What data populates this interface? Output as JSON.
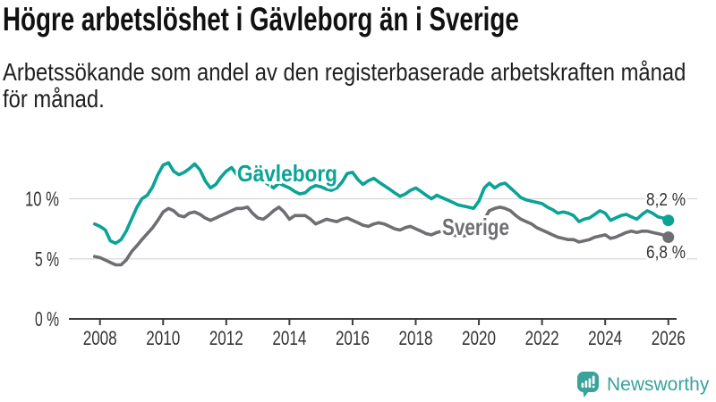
{
  "header": {
    "title": "Högre arbetslöshet i Gävleborg än i Sverige",
    "subtitle_lines": [
      "Arbetssökande som andel av den registerbaserade arbetskraften månad",
      "för månad."
    ]
  },
  "footer": {
    "brand": "Newsworthy",
    "brand_color": "#3aa29b",
    "logo_icon": "newsworthy-speech-bubble-bar-chart-icon"
  },
  "colors": {
    "gridline": "#d8d8d8",
    "axis": "#3d3d3d",
    "axis_label": "#333333",
    "end_label": "#333333"
  },
  "chart_data": {
    "type": "line",
    "x_unit": "year, monthly resolution",
    "grid": "horizontal",
    "legend": "inline-series-labels",
    "xlim": [
      2007.8,
      2026.9
    ],
    "ylim": [
      0,
      14.5
    ],
    "x": [
      2007.83,
      2008.0,
      2008.17,
      2008.33,
      2008.5,
      2008.67,
      2008.83,
      2009.0,
      2009.17,
      2009.33,
      2009.5,
      2009.67,
      2009.83,
      2010.0,
      2010.17,
      2010.33,
      2010.5,
      2010.67,
      2010.83,
      2011.0,
      2011.17,
      2011.33,
      2011.5,
      2011.67,
      2011.83,
      2012.0,
      2012.17,
      2012.33,
      2012.5,
      2012.67,
      2012.83,
      2013.0,
      2013.17,
      2013.33,
      2013.5,
      2013.67,
      2013.83,
      2014.0,
      2014.17,
      2014.33,
      2014.5,
      2014.67,
      2014.83,
      2015.0,
      2015.17,
      2015.33,
      2015.5,
      2015.67,
      2015.83,
      2016.0,
      2016.17,
      2016.33,
      2016.5,
      2016.67,
      2016.83,
      2017.0,
      2017.17,
      2017.33,
      2017.5,
      2017.67,
      2017.83,
      2018.0,
      2018.17,
      2018.33,
      2018.5,
      2018.67,
      2018.83,
      2019.0,
      2019.17,
      2019.33,
      2019.5,
      2019.67,
      2019.83,
      2020.0,
      2020.17,
      2020.33,
      2020.5,
      2020.67,
      2020.83,
      2021.0,
      2021.17,
      2021.33,
      2021.5,
      2021.67,
      2021.83,
      2022.0,
      2022.17,
      2022.33,
      2022.5,
      2022.67,
      2022.83,
      2023.0,
      2023.17,
      2023.33,
      2023.5,
      2023.67,
      2023.83,
      2024.0,
      2024.17,
      2024.33,
      2024.5,
      2024.67,
      2024.83,
      2025.0,
      2025.17,
      2025.33,
      2025.5,
      2025.67,
      2025.83,
      2026.0
    ],
    "series": [
      {
        "id": "gavleborg",
        "name": "Gävleborg",
        "color": "#0aa396",
        "end_label": "8,2 %",
        "end_value": 8.2,
        "values": [
          7.9,
          7.7,
          7.4,
          6.5,
          6.3,
          6.6,
          7.3,
          8.3,
          9.3,
          10.0,
          10.3,
          11.0,
          12.0,
          12.8,
          13.0,
          12.3,
          12.0,
          12.2,
          12.5,
          12.9,
          12.4,
          11.5,
          10.9,
          11.2,
          11.8,
          12.3,
          12.6,
          12.0,
          11.5,
          11.7,
          11.9,
          11.8,
          11.5,
          11.2,
          10.9,
          11.3,
          11.1,
          10.9,
          10.6,
          10.4,
          10.5,
          10.9,
          11.1,
          11.0,
          10.8,
          10.7,
          10.9,
          11.4,
          12.1,
          12.2,
          11.6,
          11.2,
          11.5,
          11.7,
          11.4,
          11.1,
          10.8,
          10.5,
          10.2,
          10.4,
          10.7,
          10.9,
          10.6,
          10.3,
          10.0,
          10.3,
          10.1,
          9.9,
          9.7,
          9.5,
          9.4,
          9.3,
          9.2,
          9.8,
          10.9,
          11.3,
          10.9,
          11.2,
          11.3,
          10.9,
          10.5,
          10.1,
          9.9,
          9.8,
          9.7,
          9.6,
          9.3,
          9.1,
          8.8,
          8.9,
          8.8,
          8.6,
          8.1,
          8.3,
          8.4,
          8.7,
          9.0,
          8.8,
          8.2,
          8.4,
          8.6,
          8.7,
          8.5,
          8.3,
          8.7,
          9.0,
          8.8,
          8.5,
          8.4,
          8.2
        ]
      },
      {
        "id": "sverige",
        "name": "Sverige",
        "color": "#6f6f73",
        "end_label": "6,8 %",
        "end_value": 6.8,
        "values": [
          5.2,
          5.1,
          4.9,
          4.7,
          4.5,
          4.5,
          4.9,
          5.6,
          6.1,
          6.6,
          7.1,
          7.6,
          8.2,
          8.9,
          9.2,
          9.0,
          8.6,
          8.5,
          8.8,
          8.9,
          8.7,
          8.4,
          8.2,
          8.4,
          8.6,
          8.8,
          9.0,
          9.2,
          9.2,
          9.3,
          8.8,
          8.4,
          8.3,
          8.6,
          9.0,
          9.3,
          8.9,
          8.3,
          8.6,
          8.6,
          8.6,
          8.3,
          7.9,
          8.1,
          8.3,
          8.2,
          8.1,
          8.3,
          8.4,
          8.2,
          8.0,
          7.8,
          7.7,
          7.9,
          8.0,
          7.9,
          7.7,
          7.5,
          7.4,
          7.6,
          7.7,
          7.5,
          7.3,
          7.1,
          7.0,
          7.2,
          7.3,
          7.1,
          7.0,
          6.9,
          6.9,
          7.0,
          7.1,
          7.4,
          8.3,
          9.0,
          9.2,
          9.3,
          9.2,
          9.0,
          8.6,
          8.3,
          8.1,
          7.9,
          7.6,
          7.4,
          7.2,
          7.0,
          6.8,
          6.7,
          6.6,
          6.6,
          6.4,
          6.5,
          6.6,
          6.8,
          6.9,
          7.0,
          6.7,
          6.8,
          7.0,
          7.2,
          7.3,
          7.2,
          7.3,
          7.3,
          7.2,
          7.1,
          7.0,
          6.8
        ]
      }
    ],
    "yticks": [
      {
        "value": 0,
        "label": "0 %"
      },
      {
        "value": 5,
        "label": "5 %"
      },
      {
        "value": 10,
        "label": "10 %"
      }
    ],
    "xticks": [
      {
        "value": 2008,
        "label": "2008"
      },
      {
        "value": 2010,
        "label": "2010"
      },
      {
        "value": 2012,
        "label": "2012"
      },
      {
        "value": 2014,
        "label": "2014"
      },
      {
        "value": 2016,
        "label": "2016"
      },
      {
        "value": 2018,
        "label": "2018"
      },
      {
        "value": 2020,
        "label": "2020"
      },
      {
        "value": 2022,
        "label": "2022"
      },
      {
        "value": 2024,
        "label": "2024"
      },
      {
        "value": 2026,
        "label": "2026"
      }
    ]
  }
}
